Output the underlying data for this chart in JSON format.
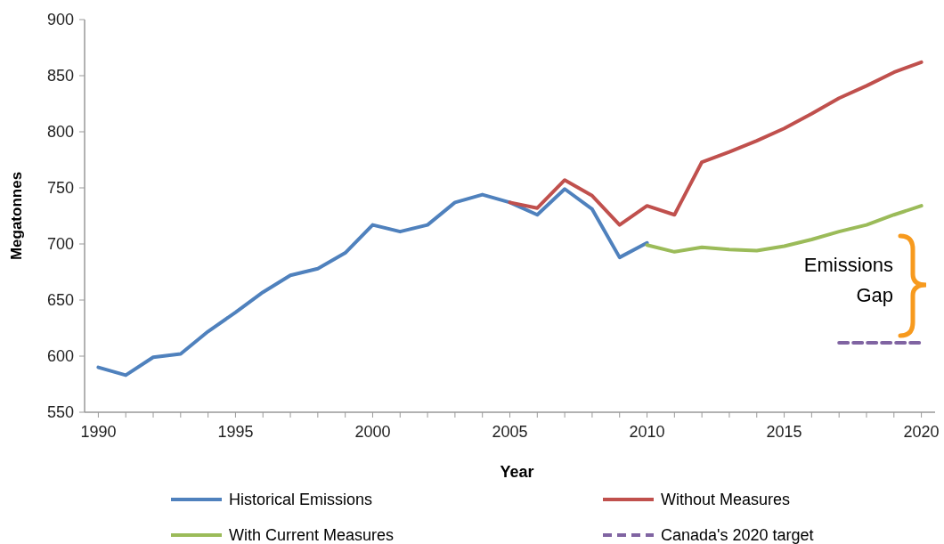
{
  "chart_data": {
    "type": "line",
    "xlabel": "Year",
    "ylabel": "Megatonnes",
    "xlim": [
      1989.5,
      2020.5
    ],
    "xticks": [
      1990,
      {
        "value": 1991,
        "label": null
      },
      {
        "value": 1992,
        "label": null
      },
      {
        "value": 1993,
        "label": null
      },
      {
        "value": 1994,
        "label": null
      },
      1995,
      {
        "value": 1996,
        "label": null
      },
      {
        "value": 1997,
        "label": null
      },
      {
        "value": 1998,
        "label": null
      },
      {
        "value": 1999,
        "label": null
      },
      2000,
      {
        "value": 2001,
        "label": null
      },
      {
        "value": 2002,
        "label": null
      },
      {
        "value": 2003,
        "label": null
      },
      {
        "value": 2004,
        "label": null
      },
      2005,
      {
        "value": 2006,
        "label": null
      },
      {
        "value": 2007,
        "label": null
      },
      {
        "value": 2008,
        "label": null
      },
      {
        "value": 2009,
        "label": null
      },
      2010,
      {
        "value": 2011,
        "label": null
      },
      {
        "value": 2012,
        "label": null
      },
      {
        "value": 2013,
        "label": null
      },
      {
        "value": 2014,
        "label": null
      },
      2015,
      {
        "value": 2016,
        "label": null
      },
      {
        "value": 2017,
        "label": null
      },
      {
        "value": 2018,
        "label": null
      },
      {
        "value": 2019,
        "label": null
      },
      2020
    ],
    "ylim": [
      550,
      900
    ],
    "yticks": [
      550,
      600,
      650,
      700,
      750,
      800,
      850,
      900
    ],
    "grid": false,
    "legend": "bottom",
    "marker": "none",
    "series": [
      {
        "name": "Historical Emissions",
        "color": "#4f81bd",
        "line_style": "solid",
        "x": [
          1990,
          1991,
          1992,
          1993,
          1994,
          1995,
          1996,
          1997,
          1998,
          1999,
          2000,
          2001,
          2002,
          2003,
          2004,
          2005,
          2006,
          2007,
          2008,
          2009,
          2010
        ],
        "values": [
          590,
          583,
          599,
          602,
          622,
          639,
          657,
          672,
          678,
          692,
          717,
          711,
          717,
          737,
          744,
          737,
          726,
          749,
          731,
          688,
          701
        ]
      },
      {
        "name": "Without Measures",
        "color": "#c0504d",
        "line_style": "solid",
        "x": [
          2005,
          2006,
          2007,
          2008,
          2009,
          2010,
          2011,
          2012,
          2013,
          2014,
          2015,
          2016,
          2017,
          2018,
          2019,
          2020
        ],
        "values": [
          737,
          732,
          757,
          743,
          717,
          734,
          726,
          773,
          782,
          792,
          803,
          816,
          830,
          841,
          853,
          862
        ]
      },
      {
        "name": "With Current Measures",
        "color": "#9bbb59",
        "line_style": "solid",
        "x": [
          2010,
          2011,
          2012,
          2013,
          2014,
          2015,
          2016,
          2017,
          2018,
          2019,
          2020
        ],
        "values": [
          699,
          693,
          697,
          695,
          694,
          698,
          704,
          711,
          717,
          726,
          734
        ]
      },
      {
        "name": "Canada's 2020 target",
        "color": "#8064a2",
        "line_style": "dashed",
        "x": [
          2017,
          2018,
          2019,
          2020
        ],
        "values": [
          612,
          612,
          612,
          612
        ]
      }
    ],
    "annotations": [
      "Emissions Gap"
    ]
  }
}
